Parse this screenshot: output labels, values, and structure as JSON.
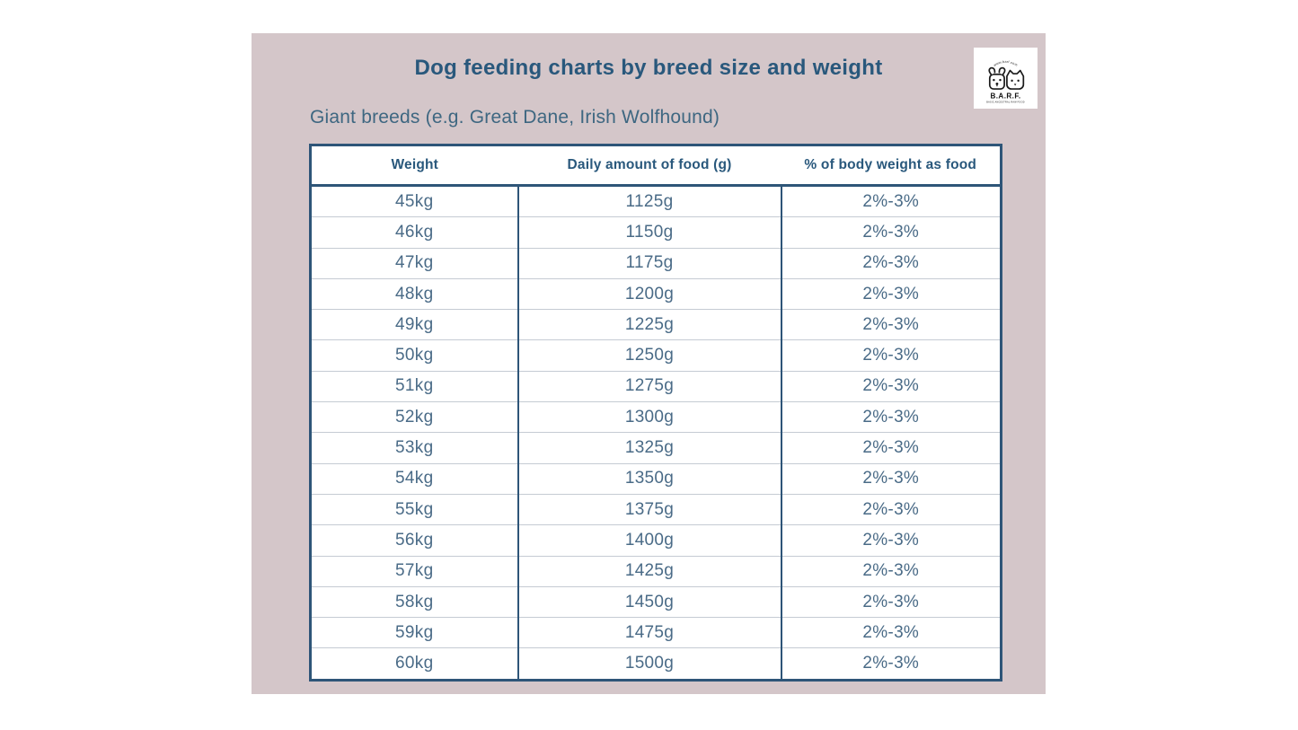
{
  "page": {
    "title": "Dog feeding charts by breed size and weight",
    "subtitle": "Giant breeds (e.g. Great Dane, Irish Wolfhound)"
  },
  "logo": {
    "arc_text": "www.barf.com",
    "acronym": "B.A.R.F.",
    "tagline": "BASIC ANCESTRAL RAW FOOD"
  },
  "colors": {
    "page_bg": "#ffffff",
    "panel_bg": "#d4c6c9",
    "accent_blue": "#29587c",
    "cell_text": "#4a6b87",
    "table_border": "#2e5578",
    "row_divider": "#c5cbd3",
    "table_bg": "#ffffff"
  },
  "chart_data": {
    "type": "table",
    "title": "Dog feeding charts by breed size and weight",
    "subtitle": "Giant breeds (e.g. Great Dane, Irish Wolfhound)",
    "columns": [
      "Weight",
      "Daily amount of food (g)",
      "% of body weight as food"
    ],
    "rows": [
      [
        "45kg",
        "1125g",
        "2%-3%"
      ],
      [
        "46kg",
        "1150g",
        "2%-3%"
      ],
      [
        "47kg",
        "1175g",
        "2%-3%"
      ],
      [
        "48kg",
        "1200g",
        "2%-3%"
      ],
      [
        "49kg",
        "1225g",
        "2%-3%"
      ],
      [
        "50kg",
        "1250g",
        "2%-3%"
      ],
      [
        "51kg",
        "1275g",
        "2%-3%"
      ],
      [
        "52kg",
        "1300g",
        "2%-3%"
      ],
      [
        "53kg",
        "1325g",
        "2%-3%"
      ],
      [
        "54kg",
        "1350g",
        "2%-3%"
      ],
      [
        "55kg",
        "1375g",
        "2%-3%"
      ],
      [
        "56kg",
        "1400g",
        "2%-3%"
      ],
      [
        "57kg",
        "1425g",
        "2%-3%"
      ],
      [
        "58kg",
        "1450g",
        "2%-3%"
      ],
      [
        "59kg",
        "1475g",
        "2%-3%"
      ],
      [
        "60kg",
        "1500g",
        "2%-3%"
      ]
    ]
  }
}
